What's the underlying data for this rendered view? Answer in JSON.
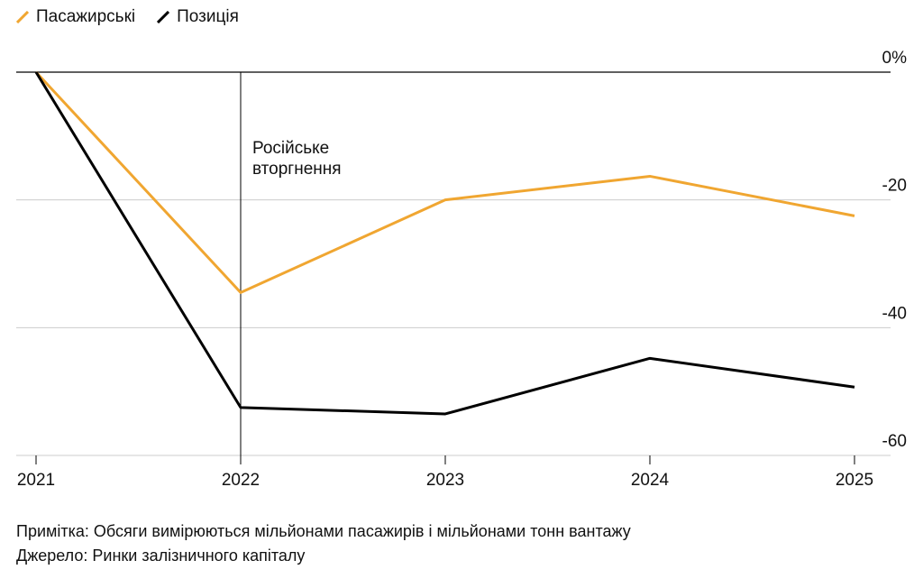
{
  "chart_data": {
    "type": "line",
    "x": [
      "2021",
      "2022",
      "2023",
      "2024",
      "2025"
    ],
    "series": [
      {
        "name": "Пасажирські",
        "color": "#f0a631",
        "values": [
          0,
          -34.5,
          -20,
          -16.3,
          -22.5
        ]
      },
      {
        "name": "Позиція",
        "color": "#000000",
        "values": [
          0,
          -52.5,
          -53.5,
          -44.8,
          -49.3
        ]
      }
    ],
    "y_ticks": [
      "0%",
      "-20",
      "-40",
      "-60"
    ],
    "y_tick_values": [
      0,
      -20,
      -40,
      -60
    ],
    "ylim": [
      -60,
      0
    ],
    "annotation": {
      "x": "2022",
      "text_line1": "Російське",
      "text_line2": "вторгнення"
    },
    "grid": true,
    "legend_position": "top-left"
  },
  "notes": {
    "note": "Примітка: Обсяги вимірюються мільйонами пасажирів і мільйонами тонн вантажу",
    "source": "Джерело: Ринки залізничного капіталу"
  }
}
